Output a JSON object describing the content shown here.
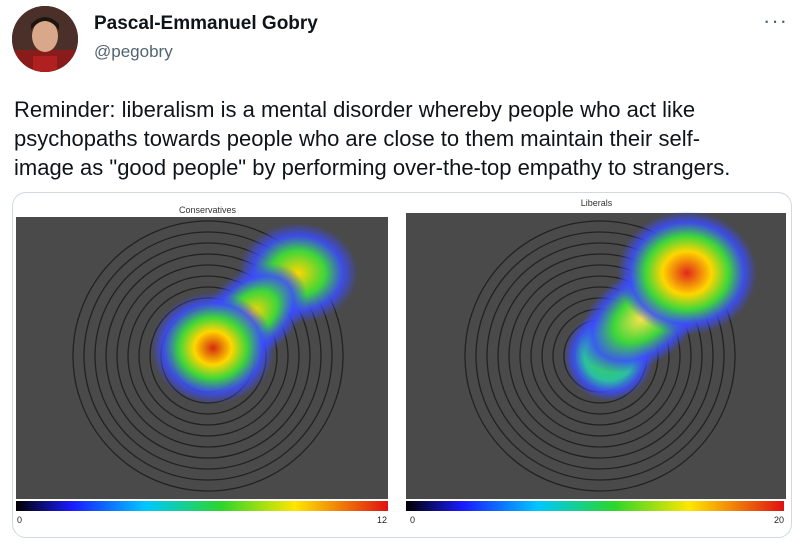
{
  "tweet": {
    "author_name": "Pascal-Emmanuel Gobry",
    "author_handle": "@pegobry",
    "more_icon": "more-horizontal-icon",
    "text_lines": [
      "Reminder: liberalism is a mental disorder whereby people who act like",
      "psychopaths towards people who are close to them maintain their self-",
      "image as \"good people\" by performing over-the-top empathy to strangers."
    ]
  },
  "figure": {
    "panels": [
      {
        "title": "Conservatives",
        "scale_min": "0",
        "scale_max": "12"
      },
      {
        "title": "Liberals",
        "scale_min": "0",
        "scale_max": "20"
      }
    ],
    "colors": {
      "background": "#4a4a4a",
      "rings": "#222222"
    }
  }
}
